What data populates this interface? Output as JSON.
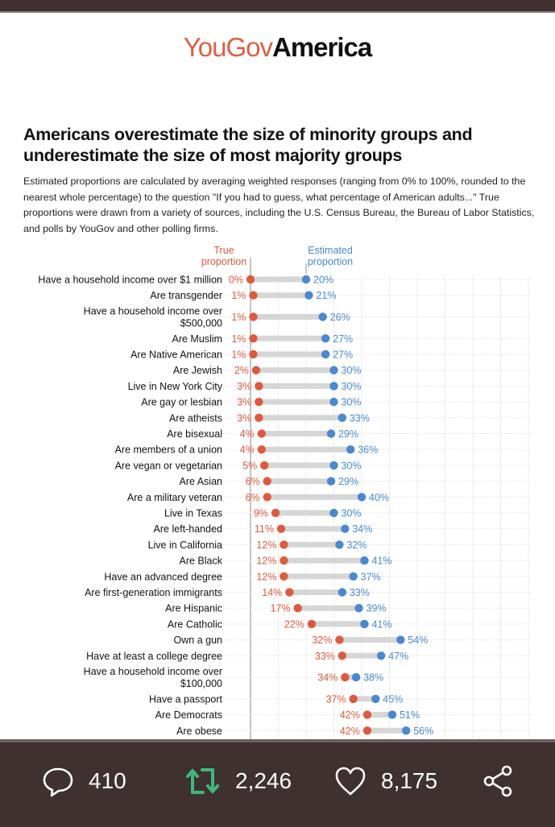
{
  "logo": {
    "part1": "YouGov",
    "part2": "America"
  },
  "title": "Americans overestimate the size of minority groups and underestimate the size of most majority groups",
  "subtitle": "Estimated proportions are calculated by averaging weighted responses (ranging from 0% to 100%, rounded to the nearest whole percentage) to the question \"If you had to guess, what percentage of American adults...\" True proportions were drawn from a variety of sources, including the U.S. Census Bureau, the Bureau of Labor Statistics, and polls by YouGov and other polling firms.",
  "colors": {
    "true": "#de5a3f",
    "estimated": "#4a88cf",
    "connector": "#d6d6d6",
    "retweet": "#3fb87a",
    "bar_bg": "#3e3130"
  },
  "chart_data": {
    "type": "dumbbell",
    "title": "Americans overestimate the size of minority groups and underestimate the size of most majority groups",
    "xlim": [
      0,
      100
    ],
    "grid": true,
    "gridline_step": 10,
    "legend": [
      {
        "name": "True proportion",
        "lines": [
          "True",
          "proportion"
        ]
      },
      {
        "name": "Estimated proportion",
        "lines": [
          "Estimated",
          "proportion"
        ]
      }
    ],
    "categories": [
      {
        "label": [
          "Have a household income over $1 million"
        ],
        "true": 0,
        "estimated": 20
      },
      {
        "label": [
          "Are transgender"
        ],
        "true": 1,
        "estimated": 21
      },
      {
        "label": [
          "Have a household income over",
          "$500,000"
        ],
        "true": 1,
        "estimated": 26
      },
      {
        "label": [
          "Are Muslim"
        ],
        "true": 1,
        "estimated": 27
      },
      {
        "label": [
          "Are Native American"
        ],
        "true": 1,
        "estimated": 27
      },
      {
        "label": [
          "Are Jewish"
        ],
        "true": 2,
        "estimated": 30
      },
      {
        "label": [
          "Live in New York City"
        ],
        "true": 3,
        "estimated": 30
      },
      {
        "label": [
          "Are gay or lesbian"
        ],
        "true": 3,
        "estimated": 30
      },
      {
        "label": [
          "Are atheists"
        ],
        "true": 3,
        "estimated": 33
      },
      {
        "label": [
          "Are bisexual"
        ],
        "true": 4,
        "estimated": 29
      },
      {
        "label": [
          "Are members of a union"
        ],
        "true": 4,
        "estimated": 36
      },
      {
        "label": [
          "Are vegan or vegetarian"
        ],
        "true": 5,
        "estimated": 30
      },
      {
        "label": [
          "Are Asian"
        ],
        "true": 6,
        "estimated": 29
      },
      {
        "label": [
          "Are a military veteran"
        ],
        "true": 6,
        "estimated": 40
      },
      {
        "label": [
          "Live in Texas"
        ],
        "true": 9,
        "estimated": 30
      },
      {
        "label": [
          "Are left-handed"
        ],
        "true": 11,
        "estimated": 34
      },
      {
        "label": [
          "Live in California"
        ],
        "true": 12,
        "estimated": 32
      },
      {
        "label": [
          "Are Black"
        ],
        "true": 12,
        "estimated": 41
      },
      {
        "label": [
          "Have an advanced degree"
        ],
        "true": 12,
        "estimated": 37
      },
      {
        "label": [
          "Are first-generation immigrants"
        ],
        "true": 14,
        "estimated": 33
      },
      {
        "label": [
          "Are Hispanic"
        ],
        "true": 17,
        "estimated": 39
      },
      {
        "label": [
          "Are Catholic"
        ],
        "true": 22,
        "estimated": 41
      },
      {
        "label": [
          "Own a gun"
        ],
        "true": 32,
        "estimated": 54
      },
      {
        "label": [
          "Have at least a college degree"
        ],
        "true": 33,
        "estimated": 47
      },
      {
        "label": [
          "Have a household income over",
          "$100,000"
        ],
        "true": 34,
        "estimated": 38
      },
      {
        "label": [
          "Have a passport"
        ],
        "true": 37,
        "estimated": 45
      },
      {
        "label": [
          "Are Democrats"
        ],
        "true": 42,
        "estimated": 51
      },
      {
        "label": [
          "Are obese"
        ],
        "true": 42,
        "estimated": 56
      }
    ]
  },
  "engagement": {
    "replies": "410",
    "retweets": "2,246",
    "likes": "8,175",
    "icons": [
      "speech-bubble-icon",
      "retweet-icon",
      "heart-icon",
      "share-icon"
    ]
  }
}
